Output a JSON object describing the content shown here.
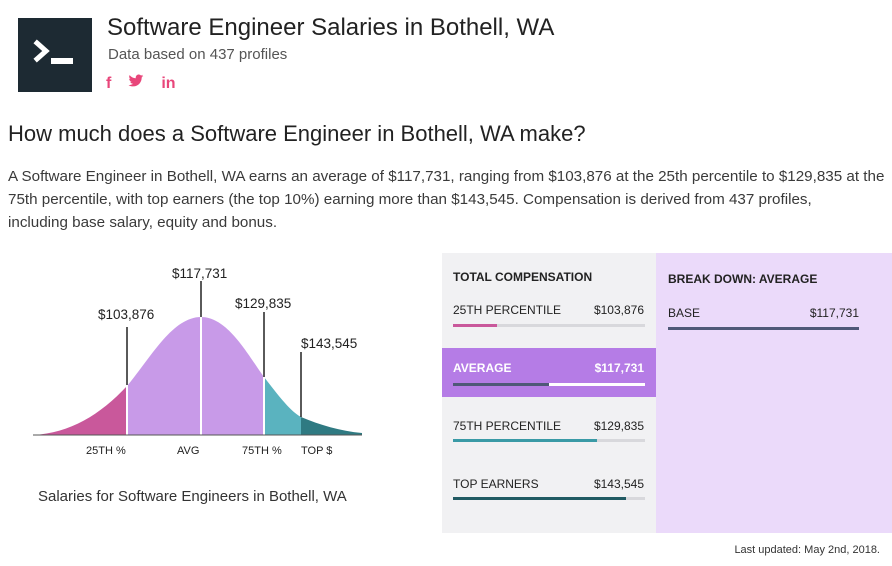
{
  "header": {
    "title": "Software Engineer Salaries in Bothell, WA",
    "subtitle": "Data based on 437 profiles",
    "social": [
      "f",
      "t",
      "in"
    ]
  },
  "question": "How much does a Software Engineer in Bothell, WA make?",
  "paragraph": [
    "A Software Engineer in Bothell, WA earns an average of $117,731, ranging from $103,876 at the 25th percentile to $129,835 at the",
    "75th percentile, with top earners (the top 10%) earning more than $143,545. Compensation is derived from 437 profiles,",
    "including base salary, equity and bonus."
  ],
  "curve": {
    "markers": [
      {
        "label": "$103,876",
        "axis": "25TH %"
      },
      {
        "label": "$117,731",
        "axis": "AVG"
      },
      {
        "label": "$129,835",
        "axis": "75TH %"
      },
      {
        "label": "$143,545",
        "axis": "TOP $"
      }
    ],
    "caption": "Salaries for Software Engineers in Bothell, WA",
    "colors": {
      "p25": "#c9589b",
      "avg": "#c89ae8",
      "p75": "#5ab3bf",
      "top": "#2f7a82"
    }
  },
  "total_comp": {
    "heading": "TOTAL COMPENSATION",
    "rows": [
      {
        "label": "25TH PERCENTILE",
        "value": "$103,876",
        "fill": 0.23,
        "color": "#c9589b"
      },
      {
        "label": "AVERAGE",
        "value": "$117,731",
        "fill": 0.5,
        "color": "#4f5878"
      },
      {
        "label": "75TH PERCENTILE",
        "value": "$129,835",
        "fill": 0.75,
        "color": "#3a9aa6"
      },
      {
        "label": "TOP EARNERS",
        "value": "$143,545",
        "fill": 0.9,
        "color": "#215a63"
      }
    ]
  },
  "breakdown": {
    "heading": "BREAK DOWN: AVERAGE",
    "rows": [
      {
        "label": "BASE",
        "value": "$117,731"
      }
    ]
  },
  "updated": "Last updated: May 2nd, 2018."
}
